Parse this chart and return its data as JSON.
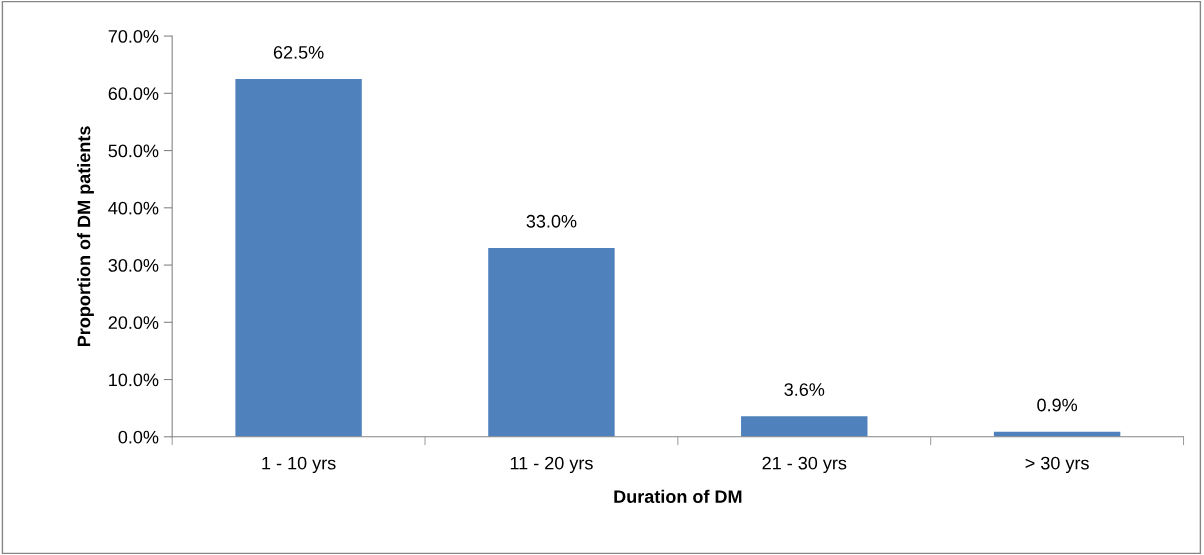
{
  "chart_data": {
    "type": "bar",
    "xlabel": "Duration of DM",
    "ylabel": "Proportion of DM patients",
    "categories": [
      "1 - 10 yrs",
      "11 - 20 yrs",
      "21 - 30 yrs",
      "> 30 yrs"
    ],
    "values": [
      62.5,
      33.0,
      3.6,
      0.9
    ],
    "value_labels": [
      "62.5%",
      "33.0%",
      "3.6%",
      "0.9%"
    ],
    "color": "#4f81bd",
    "ylim": [
      0,
      70
    ],
    "yticks": [
      {
        "value": 0,
        "label": "0.0%"
      },
      {
        "value": 10,
        "label": "10.0%"
      },
      {
        "value": 20,
        "label": "20.0%"
      },
      {
        "value": 30,
        "label": "30.0%"
      },
      {
        "value": 40,
        "label": "40.0%"
      },
      {
        "value": 50,
        "label": "50.0%"
      },
      {
        "value": 60,
        "label": "60.0%"
      },
      {
        "value": 70,
        "label": "70.0%"
      }
    ],
    "grid": false,
    "legend": false
  }
}
